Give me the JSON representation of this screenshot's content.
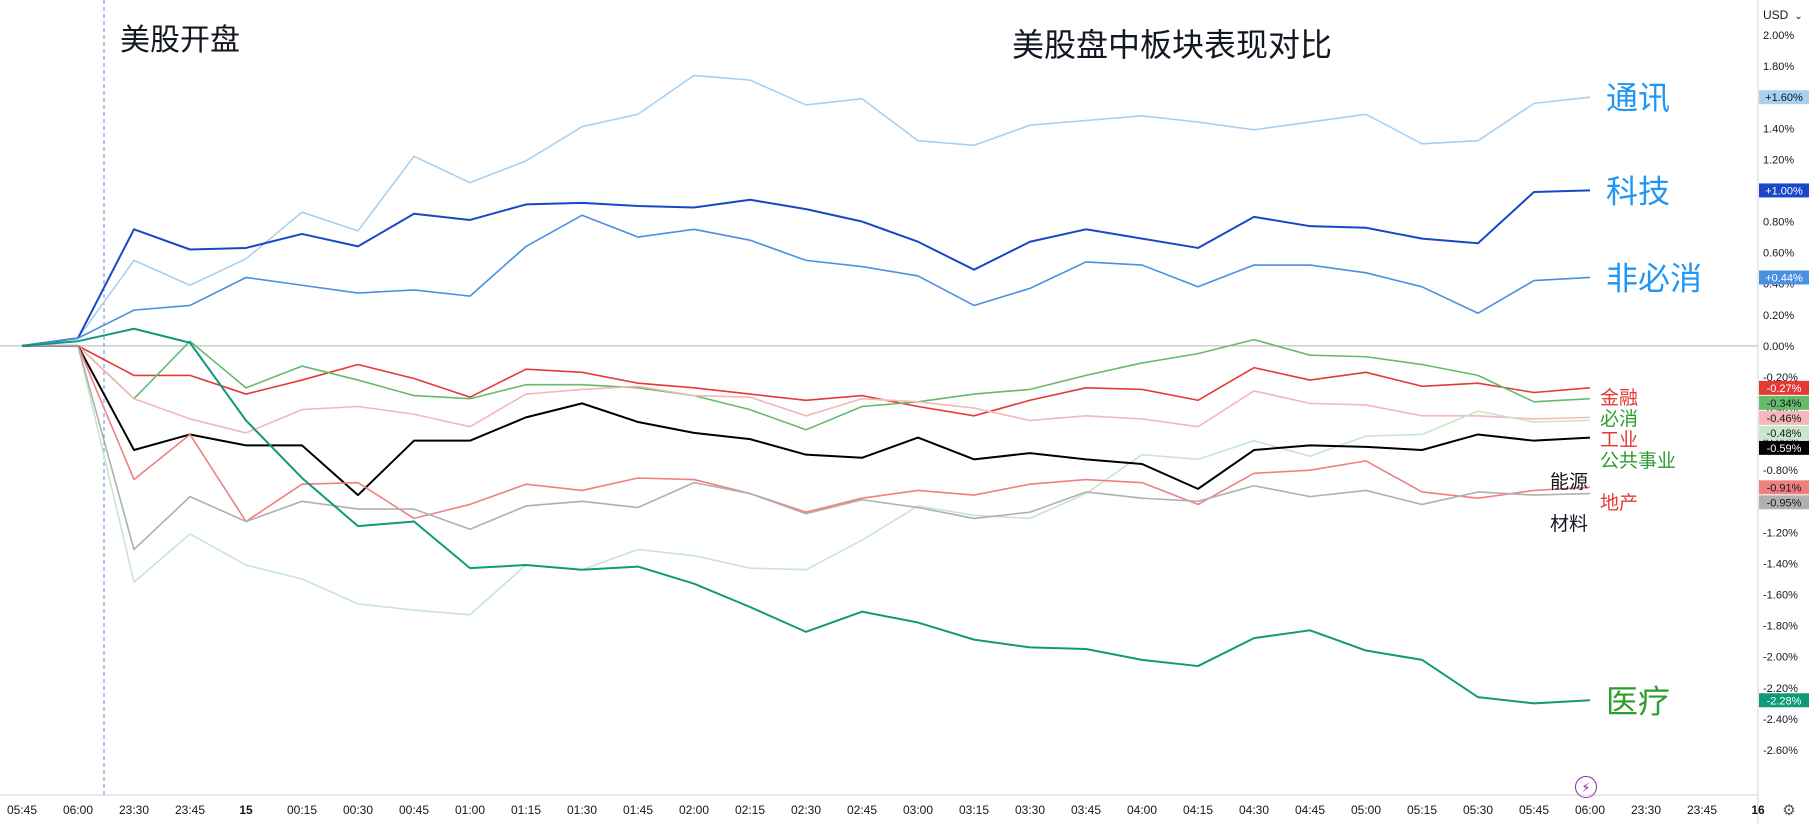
{
  "currency": "USD",
  "icons": {
    "currency_chevron": "chevron-down-icon",
    "settings": "gear-icon",
    "lightning": "lightning-icon"
  },
  "chart_data": {
    "type": "line",
    "title": "美股盘中板块表现对比",
    "annotation": "美股开盘",
    "y_unit": "%",
    "ylim": [
      -2.6,
      2.0
    ],
    "y_ticks": [
      2.0,
      1.8,
      1.6,
      1.4,
      1.2,
      1.0,
      0.8,
      0.6,
      0.4,
      0.2,
      0.0,
      -0.2,
      -0.4,
      -0.6,
      -0.8,
      -1.0,
      -1.2,
      -1.4,
      -1.6,
      -1.8,
      -2.0,
      -2.2,
      -2.4,
      -2.6
    ],
    "y_tick_labels": [
      "2.00%",
      "1.80%",
      "1.60%",
      "1.40%",
      "1.20%",
      "1.00%",
      "0.80%",
      "0.60%",
      "0.40%",
      "0.20%",
      "0.00%",
      "-0.20%",
      "-0.40%",
      "-0.60%",
      "-0.80%",
      "-1.00%",
      "-1.20%",
      "-1.40%",
      "-1.60%",
      "-1.80%",
      "-2.00%",
      "-2.20%",
      "-2.40%",
      "-2.60%"
    ],
    "x_tick_labels": [
      "05:45",
      "06:00",
      "23:30",
      "23:45",
      "15",
      "00:15",
      "00:30",
      "00:45",
      "01:00",
      "01:15",
      "01:30",
      "01:45",
      "02:00",
      "02:15",
      "02:30",
      "02:45",
      "03:00",
      "03:15",
      "03:30",
      "03:45",
      "04:00",
      "04:15",
      "04:30",
      "04:45",
      "05:00",
      "05:15",
      "05:30",
      "05:45",
      "06:00",
      "23:30",
      "23:45",
      "16"
    ],
    "x_tick_index": [
      0,
      1,
      2,
      3,
      4,
      5,
      6,
      7,
      8,
      9,
      10,
      11,
      12,
      13,
      14,
      15,
      16,
      17,
      18,
      19,
      20,
      21,
      22,
      23,
      24,
      25,
      26,
      27,
      28,
      29,
      30,
      31
    ],
    "open_marker_index": 1.5,
    "x_index": [
      0,
      1,
      2,
      3,
      4,
      5,
      6,
      7,
      8,
      9,
      10,
      11,
      12,
      13,
      14,
      15,
      16,
      17,
      18,
      19,
      20,
      21,
      22,
      23,
      24,
      25,
      26,
      27,
      28
    ],
    "grid": false,
    "legend": "right-inline",
    "series": [
      {
        "name": "通讯",
        "badge": "+1.60%",
        "color": "#a9d0f0",
        "label_color": "#2196f3",
        "label_size": "big",
        "values": [
          0,
          0.05,
          0.55,
          0.39,
          0.56,
          0.86,
          0.74,
          1.22,
          1.05,
          1.19,
          1.41,
          1.49,
          1.74,
          1.71,
          1.55,
          1.59,
          1.32,
          1.29,
          1.42,
          1.45,
          1.48,
          1.44,
          1.39,
          1.44,
          1.49,
          1.3,
          1.32,
          1.56,
          1.6
        ]
      },
      {
        "name": "科技",
        "badge": "+1.00%",
        "color": "#1848c8",
        "label_color": "#2196f3",
        "label_size": "big",
        "values": [
          0,
          0.05,
          0.75,
          0.62,
          0.63,
          0.72,
          0.64,
          0.85,
          0.81,
          0.91,
          0.92,
          0.9,
          0.89,
          0.94,
          0.88,
          0.8,
          0.67,
          0.49,
          0.67,
          0.75,
          0.69,
          0.63,
          0.83,
          0.77,
          0.76,
          0.69,
          0.66,
          0.99,
          1.0
        ]
      },
      {
        "name": "非必消",
        "badge": "+0.44%",
        "color": "#4a90e2",
        "label_color": "#2196f3",
        "label_size": "big",
        "values": [
          0,
          0.05,
          0.23,
          0.26,
          0.44,
          0.39,
          0.34,
          0.36,
          0.32,
          0.64,
          0.84,
          0.7,
          0.75,
          0.68,
          0.55,
          0.51,
          0.45,
          0.26,
          0.37,
          0.54,
          0.52,
          0.38,
          0.52,
          0.52,
          0.47,
          0.38,
          0.21,
          0.42,
          0.44
        ]
      },
      {
        "name": "金融",
        "badge": "-0.27%",
        "color": "#e53935",
        "label_color": "#e53935",
        "label_size": "small",
        "values": [
          0,
          0,
          -0.19,
          -0.19,
          -0.31,
          -0.22,
          -0.12,
          -0.21,
          -0.33,
          -0.15,
          -0.17,
          -0.24,
          -0.27,
          -0.31,
          -0.35,
          -0.32,
          -0.39,
          -0.45,
          -0.35,
          -0.27,
          -0.28,
          -0.35,
          -0.14,
          -0.22,
          -0.17,
          -0.26,
          -0.24,
          -0.3,
          -0.27
        ]
      },
      {
        "name": "必消",
        "badge": "-0.34%",
        "color": "#66bb6a",
        "label_color": "#2e9d2e",
        "label_size": "small",
        "values": [
          0,
          0,
          -0.34,
          0.03,
          -0.27,
          -0.13,
          -0.22,
          -0.32,
          -0.34,
          -0.25,
          -0.25,
          -0.27,
          -0.32,
          -0.41,
          -0.54,
          -0.39,
          -0.36,
          -0.31,
          -0.28,
          -0.19,
          -0.11,
          -0.05,
          0.04,
          -0.06,
          -0.07,
          -0.12,
          -0.19,
          -0.36,
          -0.34
        ]
      },
      {
        "name": "工业",
        "badge": "-0.46%",
        "color": "#f4b8b8",
        "label_color": "#e53935",
        "label_size": "small",
        "values": [
          0,
          0,
          -0.34,
          -0.47,
          -0.56,
          -0.41,
          -0.39,
          -0.44,
          -0.52,
          -0.31,
          -0.28,
          -0.26,
          -0.32,
          -0.33,
          -0.45,
          -0.34,
          -0.36,
          -0.4,
          -0.48,
          -0.45,
          -0.47,
          -0.52,
          -0.29,
          -0.37,
          -0.38,
          -0.45,
          -0.45,
          -0.47,
          -0.46
        ]
      },
      {
        "name": "公共事业",
        "badge": "-0.48%",
        "color": "#c8e6c9",
        "label_color": "#2e9d2e",
        "label_size": "small",
        "values": [
          0,
          0,
          -1.52,
          -1.21,
          -1.41,
          -1.5,
          -1.66,
          -1.7,
          -1.73,
          -1.41,
          -1.44,
          -1.31,
          -1.35,
          -1.43,
          -1.44,
          -1.25,
          -1.03,
          -1.09,
          -1.11,
          -0.95,
          -0.7,
          -0.73,
          -0.61,
          -0.71,
          -0.58,
          -0.57,
          -0.42,
          -0.49,
          -0.48
        ]
      },
      {
        "name": "能源",
        "badge": "-0.59%",
        "color": "#000000",
        "label_color": "#131722",
        "label_size": "small",
        "values": [
          0,
          0,
          -0.67,
          -0.57,
          -0.64,
          -0.64,
          -0.96,
          -0.61,
          -0.61,
          -0.46,
          -0.37,
          -0.49,
          -0.56,
          -0.6,
          -0.7,
          -0.72,
          -0.59,
          -0.73,
          -0.69,
          -0.73,
          -0.76,
          -0.92,
          -0.67,
          -0.64,
          -0.65,
          -0.67,
          -0.57,
          -0.61,
          -0.59
        ]
      },
      {
        "name": "地产",
        "badge": "-0.91%",
        "color": "#f08080",
        "label_color": "#e53935",
        "label_size": "small",
        "values": [
          0,
          0,
          -0.86,
          -0.57,
          -1.13,
          -0.89,
          -0.88,
          -1.11,
          -1.02,
          -0.89,
          -0.93,
          -0.85,
          -0.86,
          -0.95,
          -1.07,
          -0.98,
          -0.93,
          -0.96,
          -0.89,
          -0.86,
          -0.88,
          -1.02,
          -0.82,
          -0.8,
          -0.74,
          -0.94,
          -0.98,
          -0.93,
          -0.91
        ]
      },
      {
        "name": "材料",
        "badge": "-0.95%",
        "color": "#b0b0b0",
        "label_color": "#131722",
        "label_size": "small",
        "values": [
          0,
          0,
          -1.31,
          -0.97,
          -1.13,
          -1.0,
          -1.05,
          -1.05,
          -1.18,
          -1.03,
          -1.0,
          -1.04,
          -0.88,
          -0.95,
          -1.08,
          -0.99,
          -1.04,
          -1.11,
          -1.07,
          -0.94,
          -0.98,
          -1.0,
          -0.9,
          -0.97,
          -0.93,
          -1.02,
          -0.94,
          -0.96,
          -0.95
        ]
      },
      {
        "name": "医疗",
        "badge": "-2.28%",
        "color": "#0f9a78",
        "label_color": "#2e9d2e",
        "label_size": "big",
        "values": [
          0,
          0.03,
          0.11,
          0.02,
          -0.48,
          -0.85,
          -1.16,
          -1.13,
          -1.43,
          -1.41,
          -1.44,
          -1.42,
          -1.53,
          -1.68,
          -1.84,
          -1.71,
          -1.78,
          -1.89,
          -1.94,
          -1.95,
          -2.02,
          -2.06,
          -1.88,
          -1.83,
          -1.96,
          -2.02,
          -2.26,
          -2.3,
          -2.28
        ]
      }
    ]
  }
}
